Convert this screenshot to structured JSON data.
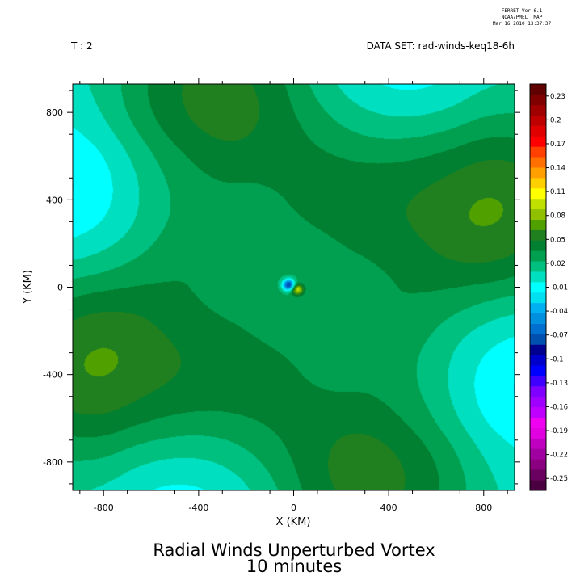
{
  "stamp": [
    "FERRET  Ver.6.1",
    "NOAA/PMEL TMAP",
    "Mar 16 2010 13:37:37"
  ],
  "header": {
    "time_label": "T : 2",
    "dataset_label": "DATA SET: rad-winds-keq18-6h"
  },
  "chart_data": {
    "type": "heatmap",
    "title": "Radial Winds Unperturbed Vortex",
    "subtitle": "10 minutes",
    "xlabel": "X (KM)",
    "ylabel": "Y (KM)",
    "xlim": [
      -930,
      930
    ],
    "ylim": [
      -930,
      930
    ],
    "x_ticks": [
      -800,
      -400,
      0,
      400,
      800
    ],
    "y_ticks": [
      -800,
      -400,
      0,
      400,
      800
    ],
    "x_tick_labels": [
      "-800",
      "-400",
      "0",
      "400",
      "800"
    ],
    "y_tick_labels": [
      "-800",
      "-400",
      "0",
      "400",
      "800"
    ],
    "field": {
      "lobe_radius": 930,
      "positive_lobes": [
        {
          "x": -650,
          "y": -250,
          "amp": 0.085
        },
        {
          "x": -200,
          "y": 670,
          "amp": 0.085
        },
        {
          "x": 650,
          "y": 250,
          "amp": 0.085
        },
        {
          "x": 200,
          "y": -670,
          "amp": 0.085
        }
      ],
      "negative_lobes": [
        {
          "x": -650,
          "y": 250,
          "amp": 0.05
        },
        {
          "x": 200,
          "y": 670,
          "amp": 0.05
        },
        {
          "x": 650,
          "y": -250,
          "amp": 0.05
        },
        {
          "x": -200,
          "y": -670,
          "amp": 0.05
        }
      ],
      "core": [
        {
          "x": -20,
          "y": 10,
          "amp": -0.11
        },
        {
          "x": 15,
          "y": -10,
          "amp": 0.07
        }
      ]
    },
    "colorbar": {
      "levels": [
        -0.25,
        -0.235,
        -0.22,
        -0.205,
        -0.19,
        -0.175,
        -0.16,
        -0.145,
        -0.13,
        -0.115,
        -0.1,
        -0.085,
        -0.07,
        -0.055,
        -0.04,
        -0.025,
        -0.01,
        0.005,
        0.02,
        0.035,
        0.05,
        0.065,
        0.08,
        0.095,
        0.11,
        0.125,
        0.14,
        0.155,
        0.17,
        0.185,
        0.2,
        0.215,
        0.23,
        0.245
      ],
      "labels": [
        "-0.25",
        "-0.22",
        "-0.19",
        "-0.16",
        "-0.13",
        "-0.1",
        "-0.07",
        "-0.04",
        "-0.01",
        "0.02",
        "0.05",
        "0.08",
        "0.11",
        "0.14",
        "0.17",
        "0.2",
        "0.23"
      ],
      "colors": [
        "#4a0040",
        "#6a0060",
        "#8a0080",
        "#a000a0",
        "#c000c0",
        "#e000e0",
        "#f000f0",
        "#c000ff",
        "#a000ff",
        "#8000ff",
        "#4000ff",
        "#0000ff",
        "#0000cc",
        "#000090",
        "#0050b0",
        "#0070d0",
        "#0090e0",
        "#00b0f0",
        "#00e0f0",
        "#00ffff",
        "#00e0c0",
        "#00c080",
        "#00a050",
        "#008030",
        "#208020",
        "#50a000",
        "#90c000",
        "#c0e000",
        "#ffff00",
        "#ffd000",
        "#ffa000",
        "#ff7000",
        "#ff4000",
        "#ff0000",
        "#e00000",
        "#c00000",
        "#a00000",
        "#800000",
        "#600000"
      ]
    }
  }
}
